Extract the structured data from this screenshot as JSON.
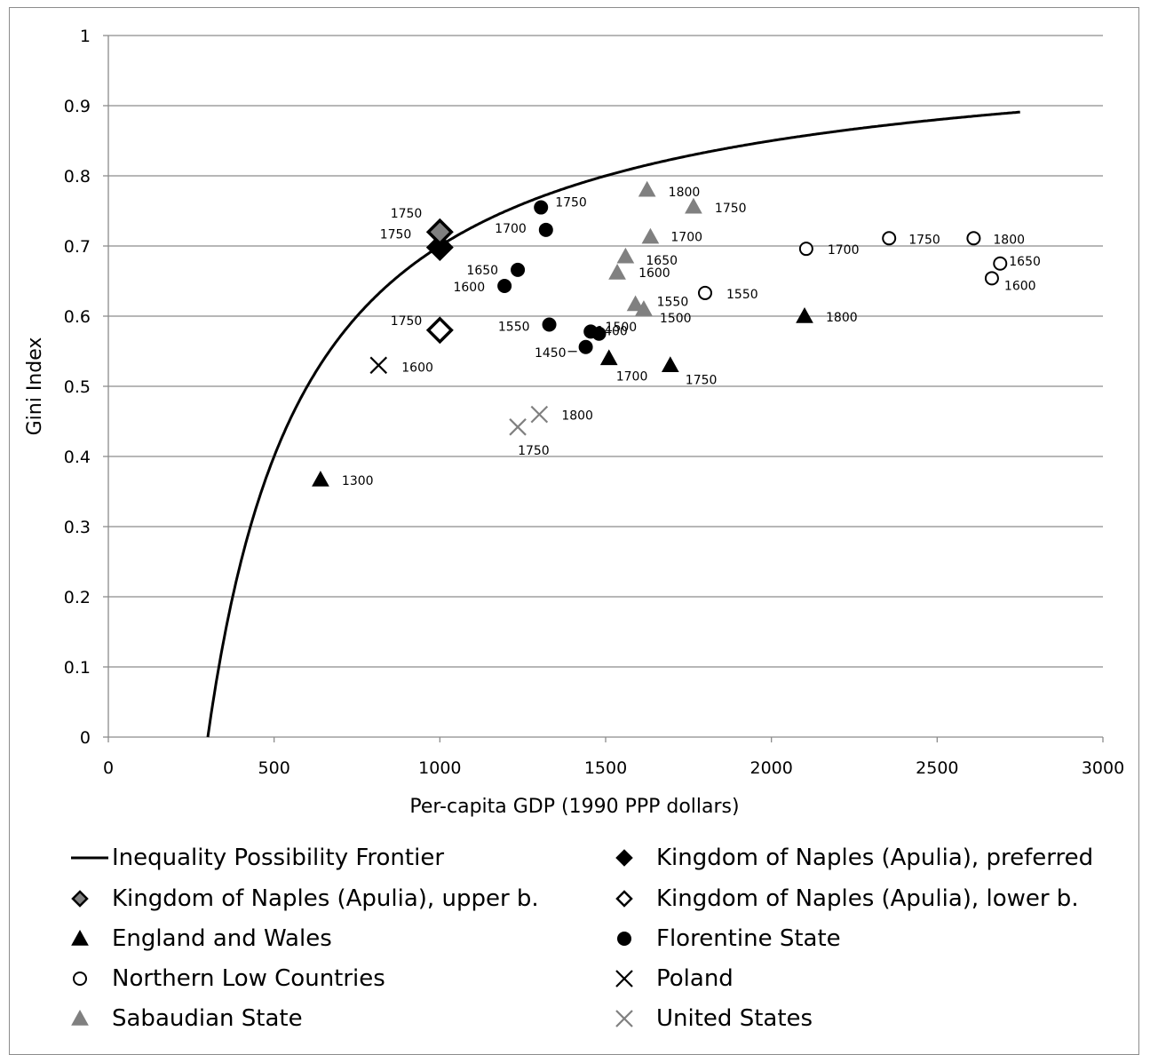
{
  "chart_data": {
    "type": "scatter",
    "xlabel": "Per-capita GDP (1990 PPP dollars)",
    "ylabel": "Gini Index",
    "xlim": [
      0,
      3000
    ],
    "ylim": [
      0,
      1
    ],
    "x_ticks": [
      "0",
      "500",
      "1000",
      "1500",
      "2000",
      "2500",
      "3000"
    ],
    "y_ticks": [
      "0",
      "0.1",
      "0.2",
      "0.3",
      "0.4",
      "0.5",
      "0.6",
      "0.7",
      "0.8",
      "0.9",
      "1"
    ],
    "grid": "horizontal",
    "legend_position": "bottom",
    "frontier": {
      "name": "Inequality Possibility Frontier",
      "subsistence": 300,
      "x_max": 2750,
      "color": "#000000"
    },
    "series": [
      {
        "name": "Kingdom of Naples (Apulia), preferred",
        "marker": "diamond",
        "fill": "#000000",
        "stroke": "#000000",
        "points": [
          {
            "x": 1000,
            "y": 0.698,
            "label": "1750"
          }
        ]
      },
      {
        "name": "Kingdom of Naples (Apulia), upper b.",
        "marker": "diamond",
        "fill": "#808080",
        "stroke": "#000000",
        "points": [
          {
            "x": 1000,
            "y": 0.72,
            "label": "1750"
          }
        ]
      },
      {
        "name": "Kingdom of Naples (Apulia), lower b.",
        "marker": "diamond",
        "fill": "#ffffff",
        "stroke": "#000000",
        "points": [
          {
            "x": 1000,
            "y": 0.58,
            "label": "1750"
          }
        ]
      },
      {
        "name": "England and Wales",
        "marker": "triangle",
        "fill": "#000000",
        "stroke": "#000000",
        "points": [
          {
            "x": 640,
            "y": 0.367,
            "label": "1300"
          },
          {
            "x": 1510,
            "y": 0.54,
            "label": "1700"
          },
          {
            "x": 1695,
            "y": 0.53,
            "label": "1750"
          },
          {
            "x": 2100,
            "y": 0.6,
            "label": "1800"
          }
        ]
      },
      {
        "name": "Florentine State",
        "marker": "circle",
        "fill": "#000000",
        "stroke": "#000000",
        "points": [
          {
            "x": 1455,
            "y": 0.578,
            "label": "1400"
          },
          {
            "x": 1440,
            "y": 0.556,
            "label": "1450"
          },
          {
            "x": 1480,
            "y": 0.575,
            "label": "1500"
          },
          {
            "x": 1330,
            "y": 0.588,
            "label": "1550"
          },
          {
            "x": 1195,
            "y": 0.643,
            "label": "1600"
          },
          {
            "x": 1235,
            "y": 0.666,
            "label": "1650"
          },
          {
            "x": 1320,
            "y": 0.723,
            "label": "1700"
          },
          {
            "x": 1305,
            "y": 0.755,
            "label": "1750"
          }
        ]
      },
      {
        "name": "Northern Low Countries",
        "marker": "circle",
        "fill": "#ffffff",
        "stroke": "#000000",
        "points": [
          {
            "x": 1800,
            "y": 0.633,
            "label": "1550"
          },
          {
            "x": 2665,
            "y": 0.654,
            "label": "1600"
          },
          {
            "x": 2690,
            "y": 0.675,
            "label": "1650"
          },
          {
            "x": 2105,
            "y": 0.696,
            "label": "1700"
          },
          {
            "x": 2355,
            "y": 0.711,
            "label": "1750"
          },
          {
            "x": 2610,
            "y": 0.711,
            "label": "1800"
          }
        ]
      },
      {
        "name": "Poland",
        "marker": "x",
        "fill": "none",
        "stroke": "#000000",
        "points": [
          {
            "x": 815,
            "y": 0.53,
            "label": "1600"
          }
        ]
      },
      {
        "name": "Sabaudian State",
        "marker": "triangle",
        "fill": "#808080",
        "stroke": "#808080",
        "points": [
          {
            "x": 1615,
            "y": 0.61,
            "label": "1500"
          },
          {
            "x": 1590,
            "y": 0.617,
            "label": "1550"
          },
          {
            "x": 1535,
            "y": 0.662,
            "label": "1600"
          },
          {
            "x": 1560,
            "y": 0.685,
            "label": "1650"
          },
          {
            "x": 1635,
            "y": 0.713,
            "label": "1700"
          },
          {
            "x": 1765,
            "y": 0.756,
            "label": "1750"
          },
          {
            "x": 1625,
            "y": 0.78,
            "label": "1800"
          }
        ]
      },
      {
        "name": "United States",
        "marker": "x",
        "fill": "none",
        "stroke": "#808080",
        "points": [
          {
            "x": 1235,
            "y": 0.442,
            "label": "1750"
          },
          {
            "x": 1300,
            "y": 0.46,
            "label": "1800"
          }
        ]
      }
    ],
    "legend": [
      {
        "name": "Inequality Possibility Frontier",
        "marker": "line",
        "fill": "#000000",
        "stroke": "#000000"
      },
      {
        "name": "Kingdom of Naples (Apulia), preferred",
        "marker": "diamond",
        "fill": "#000000",
        "stroke": "#000000"
      },
      {
        "name": "Kingdom of Naples (Apulia), upper b.",
        "marker": "diamond",
        "fill": "#808080",
        "stroke": "#000000"
      },
      {
        "name": "Kingdom of Naples (Apulia), lower b.",
        "marker": "diamond",
        "fill": "#ffffff",
        "stroke": "#000000"
      },
      {
        "name": "England and Wales",
        "marker": "triangle",
        "fill": "#000000",
        "stroke": "#000000"
      },
      {
        "name": "Florentine State",
        "marker": "circle",
        "fill": "#000000",
        "stroke": "#000000"
      },
      {
        "name": "Northern Low Countries",
        "marker": "circle",
        "fill": "#ffffff",
        "stroke": "#000000"
      },
      {
        "name": "Poland",
        "marker": "x",
        "fill": "none",
        "stroke": "#000000"
      },
      {
        "name": "Sabaudian State",
        "marker": "triangle",
        "fill": "#808080",
        "stroke": "#808080"
      },
      {
        "name": "United States",
        "marker": "x",
        "fill": "none",
        "stroke": "#808080"
      }
    ]
  }
}
